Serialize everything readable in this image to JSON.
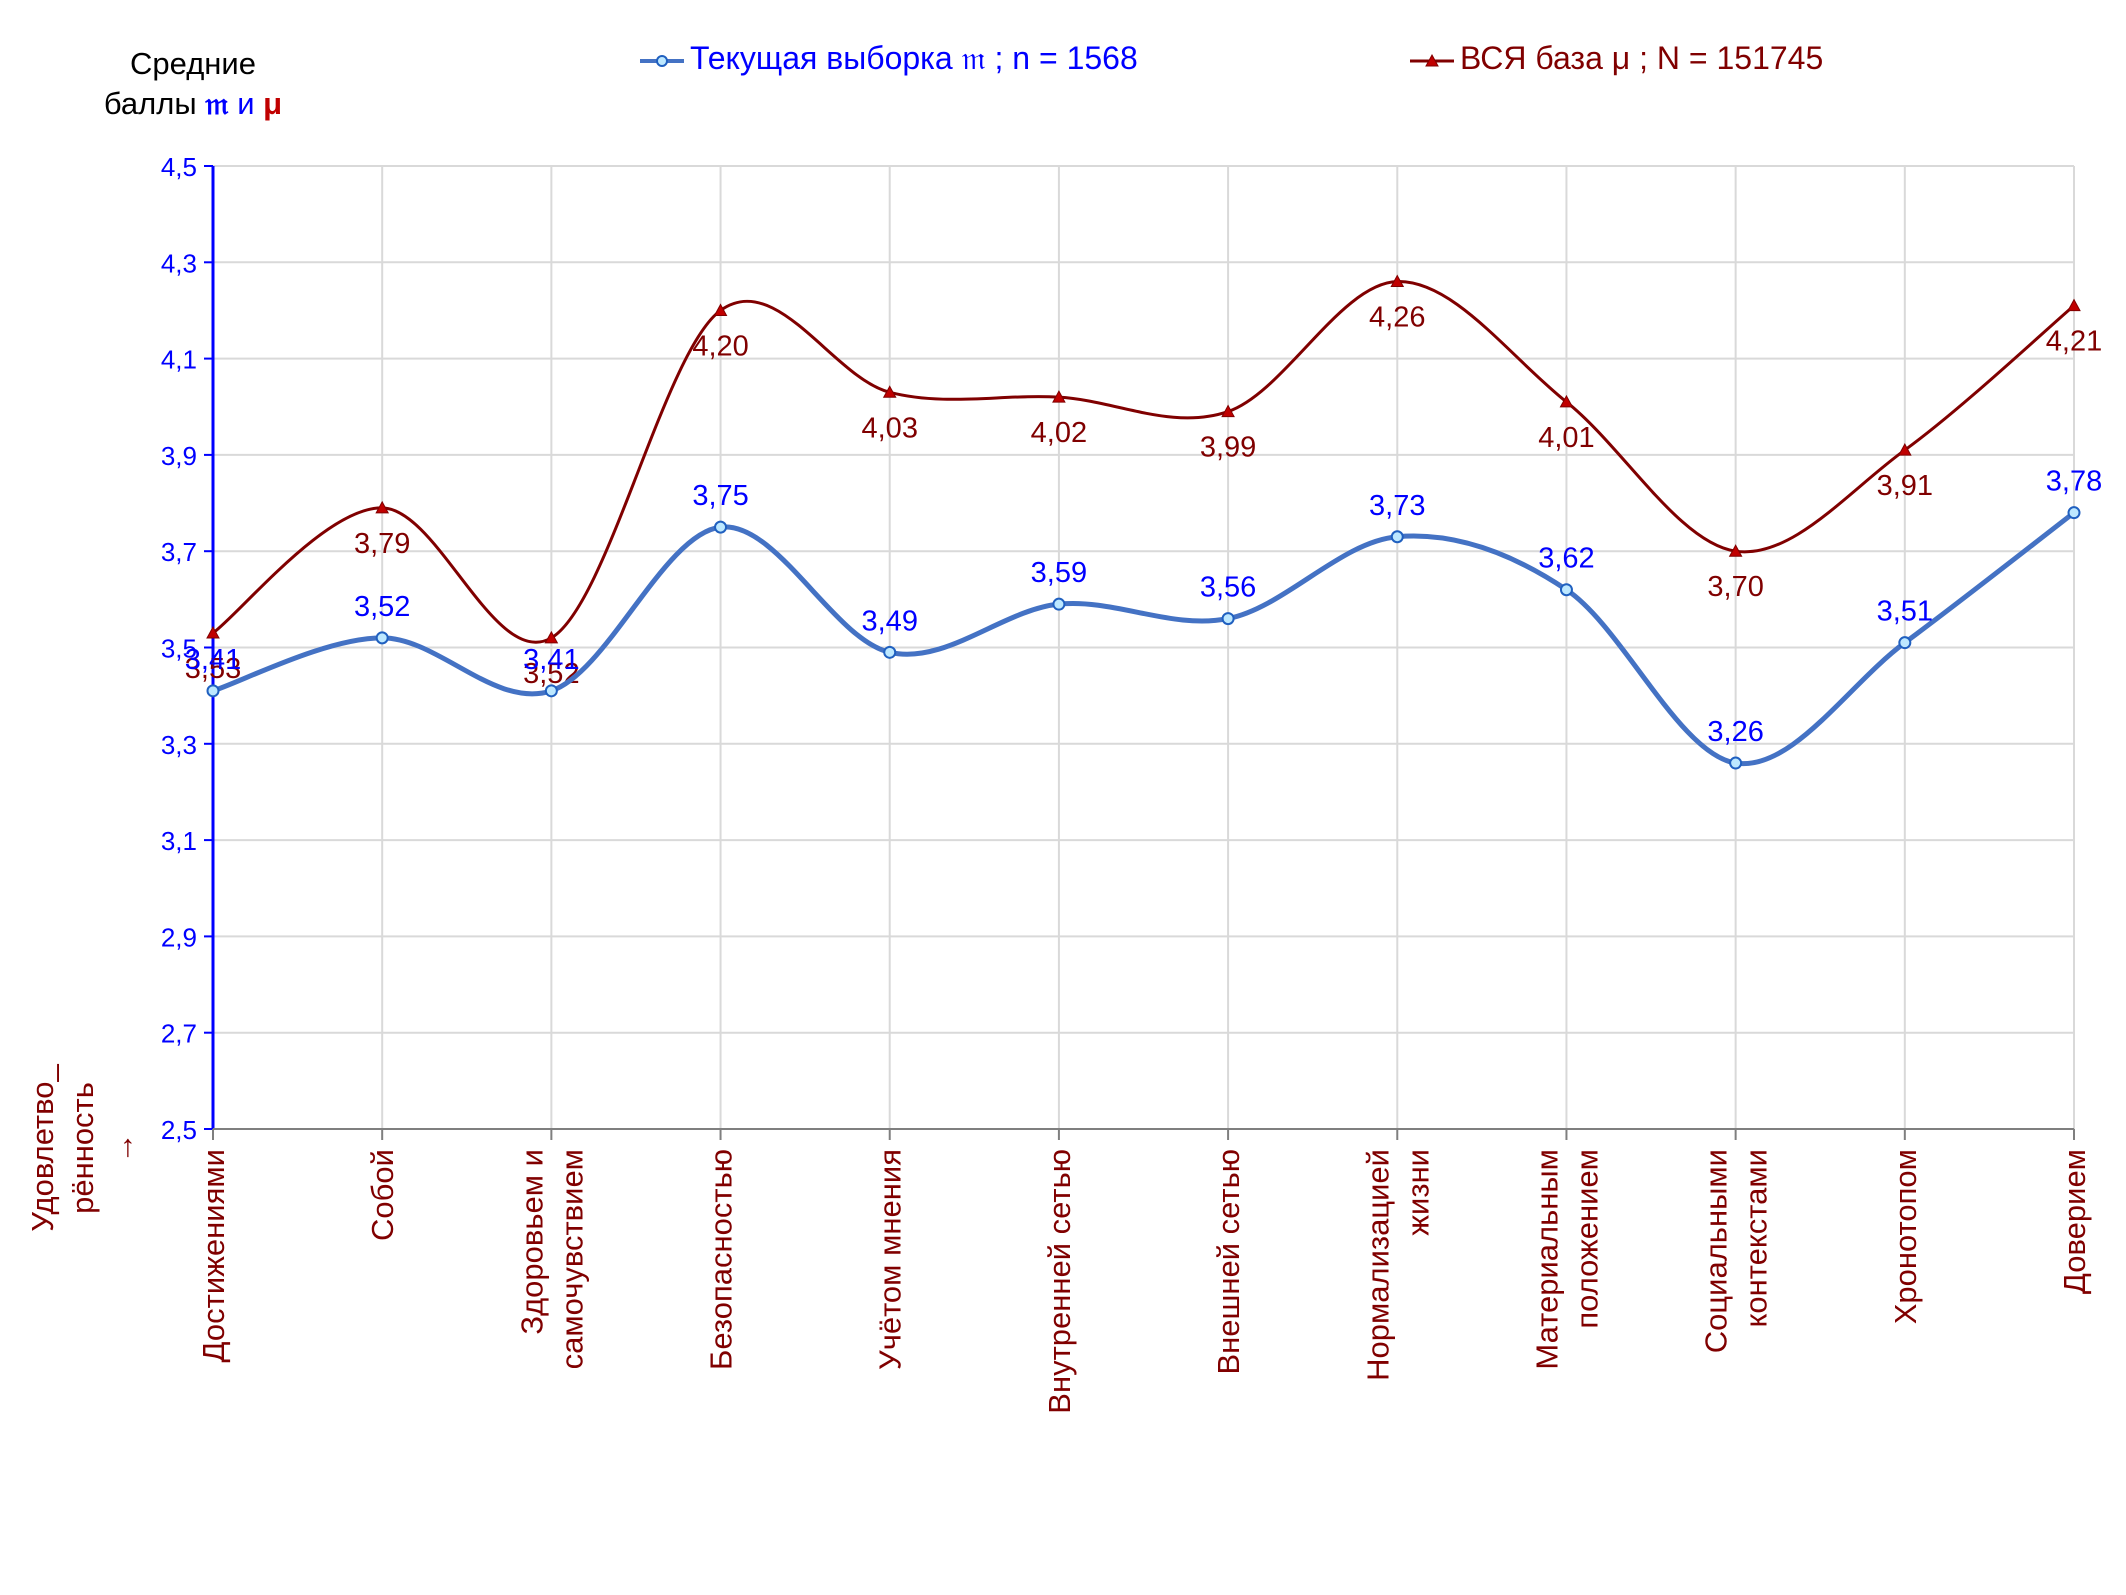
{
  "chart_data": {
    "type": "line",
    "y_axis": {
      "title_line1": "Средние",
      "title_line2_prefix": "баллы",
      "title_mu1": "𝔪",
      "title_and": "и",
      "title_mu2": "μ",
      "ylim": [
        2.5,
        4.5
      ],
      "ticks": [
        "2,5",
        "2,7",
        "2,9",
        "3,1",
        "3,3",
        "3,5",
        "3,7",
        "3,9",
        "4,1",
        "4,3",
        "4,5"
      ],
      "tick_values": [
        2.5,
        2.7,
        2.9,
        3.1,
        3.3,
        3.5,
        3.7,
        3.9,
        4.1,
        4.3,
        4.5
      ],
      "color": "#0000ff"
    },
    "x_axis": {
      "title": [
        "Удовлетво_",
        "рённость",
        "→"
      ],
      "color": "#800000"
    },
    "categories": [
      [
        "Достижениями"
      ],
      [
        "Собой"
      ],
      [
        "Здоровьем и",
        "самочувствием"
      ],
      [
        "Безопасностью"
      ],
      [
        "Учётом мнения"
      ],
      [
        "Внутренней сетью"
      ],
      [
        "Внешней сетью"
      ],
      [
        "Нормализацией",
        "жизни"
      ],
      [
        "Материальным",
        "положением"
      ],
      [
        "Социальными",
        "контекстами"
      ],
      [
        "Хронотопом"
      ],
      [
        "Доверием"
      ]
    ],
    "series": [
      {
        "name": "Текущая выборка 𝔪 ; n = 1568",
        "color": "#4472c4",
        "label_color": "#0000ff",
        "marker": "circle",
        "values": [
          3.41,
          3.52,
          3.41,
          3.75,
          3.49,
          3.59,
          3.56,
          3.73,
          3.62,
          3.26,
          3.51,
          3.78
        ],
        "labels": [
          "3,41",
          "3,52",
          "3,41",
          "3,75",
          "3,49",
          "3,59",
          "3,56",
          "3,73",
          "3,62",
          "3,26",
          "3,51",
          "3,78"
        ]
      },
      {
        "name": "ВСЯ база μ ; N = 151745",
        "color": "#800000",
        "label_color": "#800000",
        "marker": "triangle",
        "values": [
          3.53,
          3.79,
          3.52,
          4.2,
          4.03,
          4.02,
          3.99,
          4.26,
          4.01,
          3.7,
          3.91,
          4.21
        ],
        "labels": [
          "3,53",
          "3,79",
          "3,52",
          "4,20",
          "4,03",
          "4,02",
          "3,99",
          "4,26",
          "4,01",
          "3,70",
          "3,91",
          "4,21"
        ]
      }
    ],
    "grid": true,
    "legend_position": "top"
  }
}
